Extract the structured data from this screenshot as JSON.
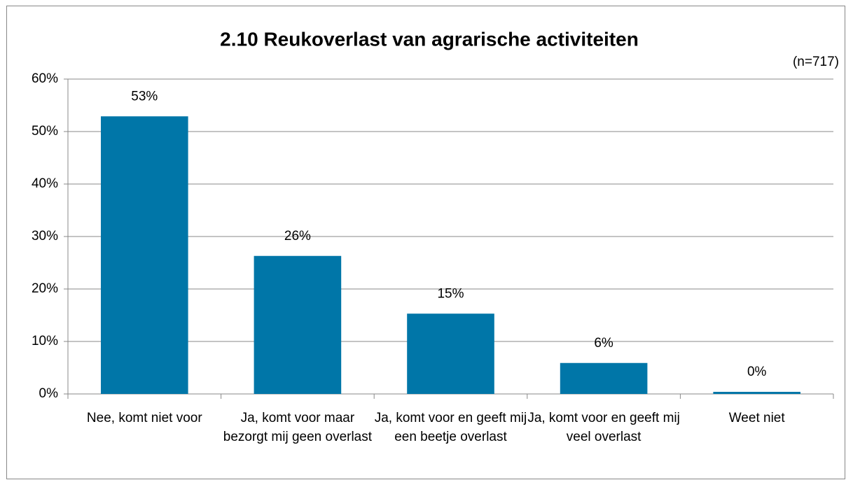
{
  "chart_data": {
    "type": "bar",
    "title": "2.10  Reukoverlast van  agrarische activiteiten",
    "annotation": "(n=717)",
    "categories": [
      "Nee, komt niet voor",
      "Ja, komt voor maar bezorgt mij geen overlast",
      "Ja, komt voor en geeft mij een beetje overlast",
      "Ja, komt voor en geeft mij veel overlast",
      "Weet niet"
    ],
    "values": [
      52.9,
      26.3,
      15.3,
      5.9,
      0.4
    ],
    "value_labels": [
      "53%",
      "26%",
      "15%",
      "6%",
      "0%"
    ],
    "color": "#0076a8",
    "ylim": [
      0,
      60
    ],
    "yticks": [
      {
        "value": 0,
        "label": "0%"
      },
      {
        "value": 10,
        "label": "10%"
      },
      {
        "value": 20,
        "label": "20%"
      },
      {
        "value": 30,
        "label": "30%"
      },
      {
        "value": 40,
        "label": "40%"
      },
      {
        "value": 50,
        "label": "50%"
      },
      {
        "value": 60,
        "label": "60%"
      }
    ],
    "grid": true
  }
}
